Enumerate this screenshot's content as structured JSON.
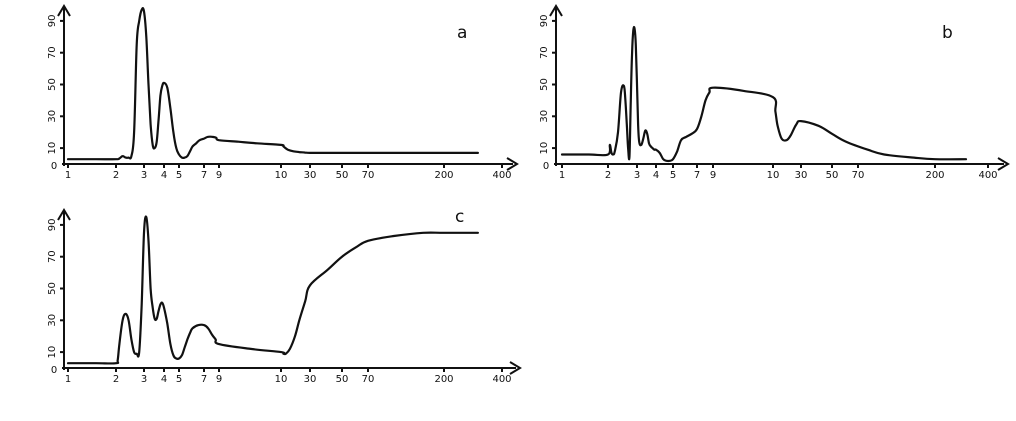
{
  "chart_data": [
    {
      "type": "line",
      "panel_label": "a",
      "x_ticks": [
        "1",
        "2",
        "3",
        "4",
        "5",
        "7",
        "9",
        "10",
        "30",
        "50",
        "70",
        "200",
        "400"
      ],
      "y_ticks": [
        "0",
        "10",
        "30",
        "50",
        "70",
        "90"
      ],
      "ylim": [
        0,
        100
      ],
      "series": [
        {
          "x": [
            1,
            1.5,
            2,
            2.1,
            2.2,
            2.3,
            2.4,
            2.5,
            2.6,
            2.7,
            2.8,
            2.9,
            3,
            3.1,
            3.2,
            3.3,
            3.4,
            3.5,
            3.6,
            3.7,
            3.8,
            3.9,
            4,
            4.2,
            4.4,
            4.6,
            4.8,
            5,
            5.2,
            5.4,
            5.6,
            5.8,
            6,
            6.3,
            6.6,
            7,
            7.4,
            7.8,
            8.2,
            8.6,
            9,
            9.3,
            9.6,
            10,
            11,
            13,
            16,
            20,
            25,
            30,
            40,
            50,
            70,
            100,
            200,
            300
          ],
          "y": [
            3,
            3,
            3,
            3.5,
            5,
            4,
            4,
            5,
            20,
            75,
            90,
            97,
            96,
            80,
            50,
            25,
            12,
            10,
            14,
            28,
            43,
            49,
            51,
            48,
            35,
            20,
            10,
            6,
            4,
            4,
            5,
            8,
            11,
            13,
            15,
            16,
            17,
            17.2,
            17,
            16.5,
            15,
            14,
            13,
            12,
            11,
            9,
            8,
            7.5,
            7.2,
            7,
            7,
            7,
            7,
            7,
            7,
            7
          ]
        }
      ]
    },
    {
      "type": "line",
      "panel_label": "b",
      "x_ticks": [
        "1",
        "2",
        "3",
        "4",
        "5",
        "7",
        "9",
        "10",
        "30",
        "50",
        "70",
        "200",
        "400"
      ],
      "y_ticks": [
        "0",
        "10",
        "30",
        "50",
        "70",
        "90"
      ],
      "ylim": [
        0,
        100
      ],
      "series": [
        {
          "x": [
            1,
            1.5,
            2,
            2.05,
            2.1,
            2.15,
            2.2,
            2.3,
            2.4,
            2.5,
            2.55,
            2.6,
            2.65,
            2.7,
            2.75,
            2.8,
            2.85,
            2.9,
            2.95,
            3,
            3.05,
            3.1,
            3.2,
            3.3,
            3.4,
            3.5,
            3.6,
            3.7,
            3.8,
            3.9,
            4,
            4.2,
            4.4,
            4.6,
            4.8,
            5,
            5.3,
            5.6,
            6,
            6.5,
            7,
            7.5,
            8,
            8.5,
            9,
            9.5,
            10,
            11,
            12,
            14,
            17,
            20,
            25,
            30,
            40,
            50,
            60,
            80,
            100,
            150,
            200,
            300
          ],
          "y": [
            6,
            6,
            6,
            12,
            7,
            6,
            8,
            20,
            45,
            49,
            40,
            25,
            10,
            5,
            40,
            70,
            84,
            85,
            75,
            50,
            25,
            14,
            12,
            16,
            21,
            19,
            13,
            11,
            10,
            9,
            9,
            7,
            3,
            2,
            2,
            3,
            8,
            15,
            17,
            19,
            22,
            30,
            40,
            45,
            48,
            46,
            42,
            33,
            24,
            16,
            15,
            18,
            25,
            27,
            24,
            19,
            14,
            9,
            6,
            4,
            3,
            3
          ]
        }
      ]
    },
    {
      "type": "line",
      "panel_label": "c",
      "x_ticks": [
        "1",
        "2",
        "3",
        "4",
        "5",
        "7",
        "9",
        "10",
        "30",
        "50",
        "70",
        "200",
        "400"
      ],
      "y_ticks": [
        "0",
        "10",
        "30",
        "50",
        "70",
        "90"
      ],
      "ylim": [
        0,
        100
      ],
      "series": [
        {
          "x": [
            1,
            1.5,
            2,
            2.05,
            2.1,
            2.2,
            2.3,
            2.4,
            2.5,
            2.6,
            2.7,
            2.8,
            2.9,
            3,
            3.1,
            3.2,
            3.3,
            3.4,
            3.5,
            3.6,
            3.7,
            3.8,
            3.9,
            4,
            4.2,
            4.4,
            4.6,
            4.8,
            5,
            5.2,
            5.4,
            5.6,
            5.8,
            6,
            6.5,
            7,
            7.5,
            8,
            8.5,
            9,
            9.5,
            10,
            11,
            12,
            14,
            17,
            20,
            25,
            30,
            40,
            50,
            60,
            70,
            100,
            150,
            200,
            300
          ],
          "y": [
            3,
            3,
            3,
            5,
            15,
            30,
            34,
            30,
            18,
            10,
            9,
            10,
            40,
            85,
            95,
            80,
            50,
            38,
            31,
            31,
            36,
            40,
            41,
            38,
            28,
            15,
            8,
            6,
            6,
            8,
            13,
            18,
            22,
            25,
            27,
            27,
            25,
            21,
            18,
            15,
            12,
            10,
            9,
            9,
            12,
            20,
            30,
            42,
            52,
            62,
            70,
            76,
            80,
            83,
            85,
            85,
            85
          ]
        }
      ]
    }
  ]
}
